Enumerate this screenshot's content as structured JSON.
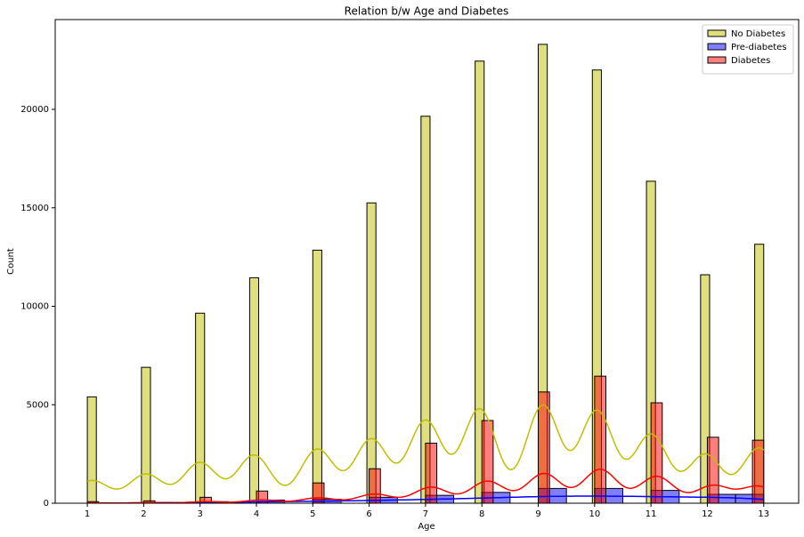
{
  "chart_data": {
    "type": "histogram",
    "title": "Relation b/w Age and Diabetes",
    "x_label": "Age",
    "y_label": "Count",
    "xlim": [
      0.43,
      13.62
    ],
    "ylim": [
      0,
      24560
    ],
    "xticks": [
      1,
      2,
      3,
      4,
      5,
      6,
      7,
      8,
      9,
      10,
      11,
      12,
      13
    ],
    "yticks": [
      0,
      5000,
      10000,
      15000,
      20000
    ],
    "legend": "upper right",
    "kde": true,
    "series": [
      {
        "name": "No Diabetes",
        "color": "#bfbf00",
        "bins": [
          1,
          1.16,
          1.32,
          1.48,
          1.64,
          1.8,
          1.96,
          2.12,
          2.28,
          2.44,
          2.6,
          2.76,
          2.92,
          3.08,
          3.24,
          3.4,
          3.56,
          3.72,
          3.88,
          4.04,
          4.2,
          4.36,
          4.52,
          4.68,
          4.84,
          5,
          5.16,
          5.32,
          5.48,
          5.64,
          5.8,
          5.96,
          6.12,
          6.28,
          6.44,
          6.6,
          6.76,
          6.92,
          7.08,
          7.24,
          7.4,
          7.56,
          7.72,
          7.88,
          8.04,
          8.2,
          8.36,
          8.52,
          8.68,
          8.84,
          9,
          9.16,
          9.32,
          9.48,
          9.64,
          9.8,
          9.96,
          10.12,
          10.28,
          10.44,
          10.6,
          10.76,
          10.92,
          11.08,
          11.24,
          11.4,
          11.56,
          11.72,
          11.88,
          12.04,
          12.2,
          12.36,
          12.52,
          12.68,
          12.84,
          13
        ],
        "values": [
          5400,
          0,
          0,
          0,
          0,
          0,
          6900,
          0,
          0,
          0,
          0,
          0,
          9650,
          0,
          0,
          0,
          0,
          0,
          11450,
          0,
          0,
          0,
          0,
          0,
          0,
          12850,
          0,
          0,
          0,
          0,
          0,
          15250,
          0,
          0,
          0,
          0,
          0,
          19650,
          0,
          0,
          0,
          0,
          0,
          22450,
          0,
          0,
          0,
          0,
          0,
          0,
          23300,
          0,
          0,
          0,
          0,
          0,
          22000,
          0,
          0,
          0,
          0,
          0,
          16350,
          0,
          0,
          0,
          0,
          0,
          11600,
          0,
          0,
          0,
          0,
          0,
          13150
        ]
      },
      {
        "name": "Pre-diabetes",
        "color": "#0000ff",
        "bins": [
          1,
          1.5,
          2,
          2.5,
          3,
          3.5,
          4,
          4.5,
          5,
          5.5,
          6,
          6.5,
          7,
          7.5,
          8,
          8.5,
          9,
          9.5,
          10,
          10.5,
          11,
          11.5,
          12,
          12.5,
          13
        ],
        "values": [
          20,
          0,
          40,
          0,
          80,
          0,
          160,
          0,
          200,
          0,
          300,
          0,
          400,
          0,
          550,
          0,
          750,
          0,
          750,
          0,
          650,
          0,
          450,
          450
        ]
      },
      {
        "name": "Diabetes",
        "color": "#ff0000",
        "bins": [
          1,
          1.2,
          1.4,
          1.6,
          1.8,
          2,
          2.2,
          2.4,
          2.6,
          2.8,
          3,
          3.2,
          3.4,
          3.6,
          3.8,
          4,
          4.2,
          4.4,
          4.6,
          4.8,
          5,
          5.2,
          5.4,
          5.6,
          5.8,
          6,
          6.2,
          6.4,
          6.6,
          6.8,
          7,
          7.2,
          7.4,
          7.6,
          7.8,
          8,
          8.2,
          8.4,
          8.6,
          8.8,
          9,
          9.2,
          9.4,
          9.6,
          9.8,
          10,
          10.2,
          10.4,
          10.6,
          10.8,
          11,
          11.2,
          11.4,
          11.6,
          11.8,
          12,
          12.2,
          12.4,
          12.6,
          12.8,
          13
        ],
        "values": [
          80,
          0,
          0,
          0,
          0,
          120,
          0,
          0,
          0,
          0,
          300,
          0,
          0,
          0,
          0,
          620,
          0,
          0,
          0,
          0,
          1030,
          0,
          0,
          0,
          0,
          1750,
          0,
          0,
          0,
          0,
          3050,
          0,
          0,
          0,
          0,
          4200,
          0,
          0,
          0,
          0,
          5650,
          0,
          0,
          0,
          0,
          6450,
          0,
          0,
          0,
          0,
          5100,
          0,
          0,
          0,
          0,
          3350,
          0,
          0,
          0,
          3200
        ]
      }
    ]
  }
}
